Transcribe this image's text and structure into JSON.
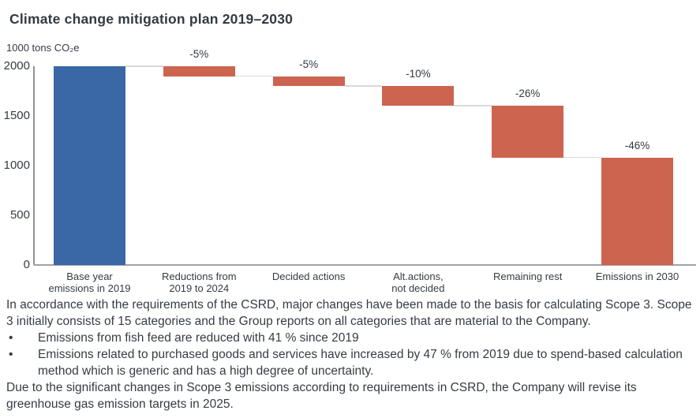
{
  "header": {
    "title": "Climate change mitigation plan 2019–2030"
  },
  "chart_data": {
    "type": "bar",
    "subtype": "waterfall",
    "title": "Climate change mitigation plan 2019–2030",
    "ylabel": "1000 tons CO₂e",
    "xlabel": "",
    "ylim": [
      0,
      2000
    ],
    "yticks": [
      0,
      500,
      1000,
      1500,
      2000
    ],
    "grid": false,
    "legend": "none",
    "categories": [
      "Base year\nemissions in 2019",
      "Reductions from\n2019 to 2024",
      "Decided actions",
      "Alt.actions,\nnot decided",
      "Remaining rest",
      "Emissions in  2030"
    ],
    "bars": [
      {
        "category": "Base year\nemissions in 2019",
        "low": 0,
        "high": 2000,
        "value": 2000,
        "percent_label": "",
        "role": "base"
      },
      {
        "category": "Reductions from\n2019 to 2024",
        "low": 1900,
        "high": 2000,
        "value": -100,
        "percent_label": "-5%",
        "role": "decrease"
      },
      {
        "category": "Decided actions",
        "low": 1800,
        "high": 1900,
        "value": -100,
        "percent_label": "-5%",
        "role": "decrease"
      },
      {
        "category": "Alt.actions,\nnot decided",
        "low": 1600,
        "high": 1800,
        "value": -200,
        "percent_label": "-10%",
        "role": "decrease"
      },
      {
        "category": "Remaining rest",
        "low": 1080,
        "high": 1600,
        "value": -520,
        "percent_label": "-26%",
        "role": "decrease"
      },
      {
        "category": "Emissions in  2030",
        "low": 0,
        "high": 1080,
        "value": 1080,
        "percent_label": "-46%",
        "role": "total"
      }
    ],
    "colors": {
      "base": "#3a67a5",
      "decrease": "#cc6450",
      "total": "#cc6450",
      "connector": "#d9d9d9",
      "axis": "#8f9498",
      "text": "#363c44"
    }
  },
  "notes": {
    "para1": "In accordance with the requirements of the CSRD, major changes have been made to the basis for calculating Scope 3. Scope 3 initially consists of 15 categories and the Group reports on all categories that are material to the Company.",
    "bullet_glyph": "•",
    "bullets": [
      "Emissions from fish feed are reduced with 41 % since 2019",
      "Emissions related to purchased goods and services have increased by 47 % from 2019 due to spend-based calculation method which is generic and has a high degree of uncertainty."
    ],
    "para2": "Due to the significant changes in Scope 3 emissions according to requirements in CSRD, the Company will revise its greenhouse gas emission targets in 2025."
  }
}
